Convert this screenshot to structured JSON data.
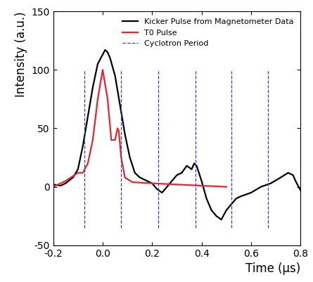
{
  "chart_data": {
    "type": "line",
    "x_label": "Time (µs)",
    "y_label": "Intensity (a.u.)",
    "xlim": [
      -0.2,
      0.8
    ],
    "ylim": [
      -50,
      150
    ],
    "xticks": [
      {
        "value": -0.2,
        "label": "-0.2"
      },
      {
        "value": 0,
        "label": "0.0"
      },
      {
        "value": 0.2,
        "label": "0.2"
      },
      {
        "value": 0.4,
        "label": "0.4"
      },
      {
        "value": 0.6,
        "label": "0.6"
      },
      {
        "value": 0.8,
        "label": "0.8"
      }
    ],
    "yticks": [
      -50,
      0,
      50,
      100,
      150
    ],
    "grid": false,
    "legend": "upper right",
    "series": [
      {
        "name": "Kicker Pulse from Magnetometer Data",
        "color": "#000000",
        "line_style": "solid",
        "x": [
          -0.2,
          -0.17,
          -0.15,
          -0.12,
          -0.1,
          -0.08,
          -0.06,
          -0.04,
          -0.02,
          0.0,
          0.01,
          0.02,
          0.03,
          0.05,
          0.07,
          0.09,
          0.11,
          0.13,
          0.15,
          0.18,
          0.2,
          0.22,
          0.24,
          0.26,
          0.28,
          0.3,
          0.32,
          0.34,
          0.36,
          0.37,
          0.38,
          0.4,
          0.42,
          0.44,
          0.46,
          0.48,
          0.5,
          0.52,
          0.54,
          0.56,
          0.6,
          0.64,
          0.68,
          0.72,
          0.75,
          0.77,
          0.78,
          0.8
        ],
        "values": [
          2,
          1,
          3,
          8,
          15,
          35,
          60,
          85,
          105,
          113,
          117,
          115,
          110,
          95,
          70,
          45,
          25,
          12,
          8,
          5,
          3,
          -2,
          -5,
          0,
          5,
          10,
          12,
          18,
          15,
          20,
          18,
          5,
          -10,
          -20,
          -25,
          -28,
          -20,
          -15,
          -10,
          -8,
          -5,
          0,
          3,
          8,
          12,
          10,
          5,
          -3
        ]
      },
      {
        "name": "T0 Pulse",
        "color": "#e8242c",
        "line_style": "solid",
        "x": [
          -0.2,
          -0.15,
          -0.1,
          -0.08,
          -0.06,
          -0.04,
          -0.02,
          0.0,
          0.02,
          0.035,
          0.05,
          0.06,
          0.065,
          0.075,
          0.09,
          0.12,
          0.2,
          0.3,
          0.4,
          0.5
        ],
        "values": [
          0,
          5,
          12,
          12,
          20,
          40,
          75,
          100,
          75,
          40,
          40,
          50,
          48,
          25,
          8,
          4,
          3,
          2,
          1,
          0
        ]
      },
      {
        "name": "Cyclotron Period",
        "color": "#3a3ad0",
        "line_style": "dashed",
        "x": [
          -0.075,
          -0.075,
          -0.075,
          0.075,
          0.075,
          0.075,
          0.225,
          0.225,
          0.225,
          0.375,
          0.375,
          0.375,
          0.52,
          0.52,
          0.52,
          0.67,
          0.67,
          0.67
        ],
        "values": [
          -35,
          100,
          null,
          -35,
          100,
          null,
          -35,
          100,
          null,
          -35,
          100,
          null,
          -35,
          100,
          null,
          -35,
          100,
          null
        ]
      }
    ]
  }
}
